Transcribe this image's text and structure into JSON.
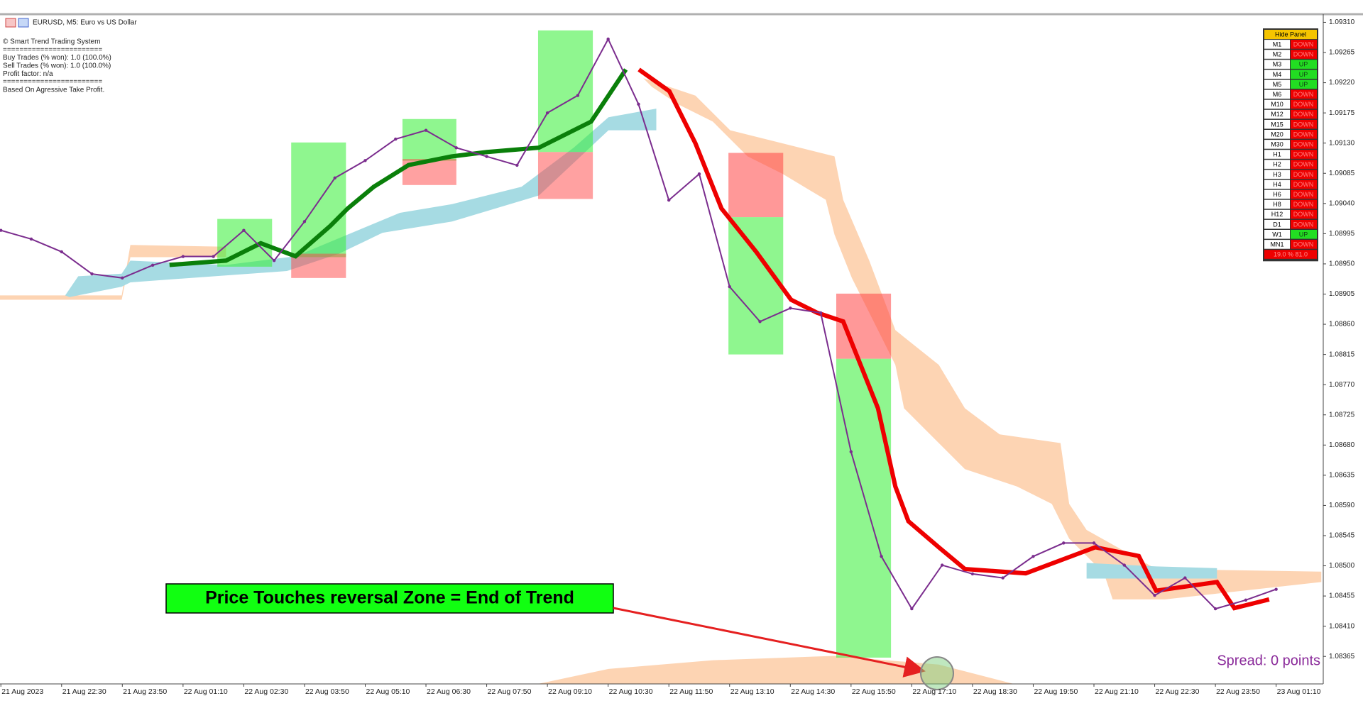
{
  "header": {
    "symbol": "EURUSD, M5:  Euro vs US Dollar"
  },
  "stats": [
    "© Smart Trend Trading System",
    "========================",
    "Buy Trades (% won): 1.0 (100.0%)",
    "Sell Trades (% won): 1.0 (100.0%)",
    "Profit factor: n/a",
    "========================",
    "Based On Agressive Take Profit."
  ],
  "panel": {
    "button": "Hide Panel",
    "rows": [
      [
        "M1",
        "DOWN"
      ],
      [
        "M2",
        "DOWN"
      ],
      [
        "M3",
        "UP"
      ],
      [
        "M4",
        "UP"
      ],
      [
        "M5",
        "UP"
      ],
      [
        "M6",
        "DOWN"
      ],
      [
        "M10",
        "DOWN"
      ],
      [
        "M12",
        "DOWN"
      ],
      [
        "M15",
        "DOWN"
      ],
      [
        "M20",
        "DOWN"
      ],
      [
        "M30",
        "DOWN"
      ],
      [
        "H1",
        "DOWN"
      ],
      [
        "H2",
        "DOWN"
      ],
      [
        "H3",
        "DOWN"
      ],
      [
        "H4",
        "DOWN"
      ],
      [
        "H6",
        "DOWN"
      ],
      [
        "H8",
        "DOWN"
      ],
      [
        "H12",
        "DOWN"
      ],
      [
        "D1",
        "DOWN"
      ],
      [
        "W1",
        "UP"
      ],
      [
        "MN1",
        "DOWN"
      ]
    ],
    "summary": "19.0 % 81.0"
  },
  "annotation": "Price Touches reversal Zone = End of Trend",
  "spread": "Spread: 0 points",
  "chart_data": {
    "type": "line",
    "color": "#7b2d8e",
    "categories": [
      "21 Aug 2023",
      null,
      "21 Aug 22:30",
      null,
      "21 Aug 23:50",
      null,
      "22 Aug 01:10",
      null,
      "22 Aug 02:30",
      null,
      "22 Aug 03:50",
      null,
      "22 Aug 05:10",
      null,
      "22 Aug 06:30",
      null,
      "22 Aug 07:50",
      null,
      "22 Aug 09:10",
      null,
      "22 Aug 10:30",
      null,
      "22 Aug 11:50",
      null,
      "22 Aug 13:10",
      null,
      "22 Aug 14:30",
      null,
      "22 Aug 15:50",
      null,
      "22 Aug 17:10",
      null,
      "22 Aug 18:30",
      null,
      "22 Aug 19:50",
      null,
      "22 Aug 21:10",
      null,
      "22 Aug 22:30",
      null,
      "22 Aug 23:50",
      null,
      "23 Aug 01:10"
    ],
    "values": [
      1.09,
      1.08987,
      1.08968,
      1.08935,
      1.08929,
      1.08948,
      1.08961,
      1.08961,
      1.09,
      1.08955,
      1.09013,
      1.09078,
      1.09104,
      1.09136,
      1.09149,
      1.09123,
      1.0911,
      1.09097,
      1.09175,
      1.09201,
      1.09285,
      1.09188,
      1.09045,
      1.09084,
      1.08916,
      1.08864,
      1.08884,
      1.08877,
      1.0867,
      1.08514,
      1.08436,
      1.08501,
      1.08488,
      1.08482,
      1.08514,
      1.08534,
      1.08534,
      1.08501,
      1.08456,
      1.08482,
      1.08436,
      1.08449,
      1.08465
    ],
    "ylim": [
      1.08324,
      1.0932
    ],
    "yticks": [
      1.08365,
      {
        "value": 1.0841,
        "label": "1.08410"
      },
      1.08455,
      {
        "value": 1.085,
        "label": "1.08500"
      },
      1.08545,
      {
        "value": 1.0859,
        "label": "1.08590"
      },
      1.08635,
      {
        "value": 1.0868,
        "label": "1.08680"
      },
      1.08725,
      {
        "value": 1.0877,
        "label": "1.08770"
      },
      1.08815,
      {
        "value": 1.0886,
        "label": "1.08860"
      },
      1.08905,
      {
        "value": 1.0895,
        "label": "1.08950"
      },
      1.08995,
      {
        "value": 1.0904,
        "label": "1.09040"
      },
      1.09085,
      {
        "value": 1.0913,
        "label": "1.09130"
      },
      1.09175,
      {
        "value": 1.0922,
        "label": "1.09220"
      },
      1.09265,
      {
        "value": 1.0931,
        "label": "1.09310"
      }
    ]
  }
}
